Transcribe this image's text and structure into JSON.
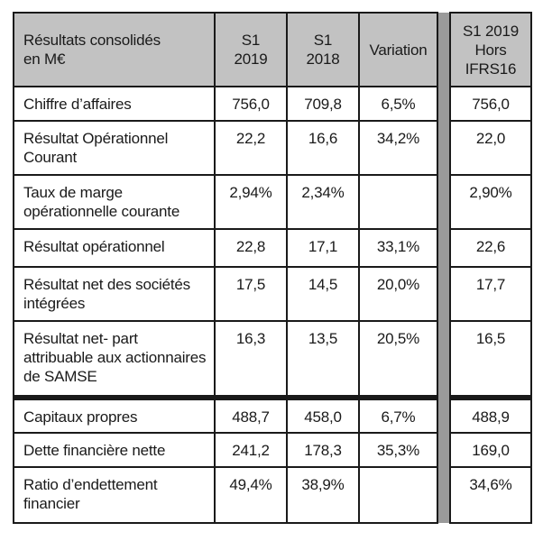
{
  "colors": {
    "header_background": "#c2c2c2",
    "divider_bar": "#9a9a9a",
    "border": "#1a1a1a",
    "page_background": "#ffffff"
  },
  "table": {
    "headers": {
      "label": "Résultats consolidés\nen M€",
      "s1_2019": "S1\n2019",
      "s1_2018": "S1\n2018",
      "variation": "Variation",
      "s1_2019_hors_ifrs16": "S1 2019\nHors\nIFRS16"
    },
    "rows": [
      {
        "label": "Chiffre d’affaires",
        "s1_2019": "756,0",
        "s1_2018": "709,8",
        "variation": "6,5%",
        "hors_ifrs16": "756,0"
      },
      {
        "label": "Résultat Opérationnel Courant",
        "s1_2019": "22,2",
        "s1_2018": "16,6",
        "variation": "34,2%",
        "hors_ifrs16": "22,0"
      },
      {
        "label": "Taux de marge opérationnelle courante",
        "s1_2019": "2,94%",
        "s1_2018": "2,34%",
        "variation": "",
        "hors_ifrs16": "2,90%"
      },
      {
        "label": "Résultat opérationnel",
        "s1_2019": "22,8",
        "s1_2018": "17,1",
        "variation": "33,1%",
        "hors_ifrs16": "22,6"
      },
      {
        "label": "Résultat net des sociétés intégrées",
        "s1_2019": "17,5",
        "s1_2018": "14,5",
        "variation": "20,0%",
        "hors_ifrs16": "17,7"
      },
      {
        "label": "Résultat net- part attribuable aux actionnaires de SAMSE",
        "s1_2019": "16,3",
        "s1_2018": "13,5",
        "variation": "20,5%",
        "hors_ifrs16": "16,5"
      },
      {
        "label": "Capitaux propres",
        "s1_2019": "488,7",
        "s1_2018": "458,0",
        "variation": "6,7%",
        "hors_ifrs16": "488,9"
      },
      {
        "label": "Dette financière nette",
        "s1_2019": "241,2",
        "s1_2018": "178,3",
        "variation": "35,3%",
        "hors_ifrs16": "169,0"
      },
      {
        "label": "Ratio d’endettement financier",
        "s1_2019": "49,4%",
        "s1_2018": "38,9%",
        "variation": "",
        "hors_ifrs16": "34,6%"
      }
    ]
  }
}
